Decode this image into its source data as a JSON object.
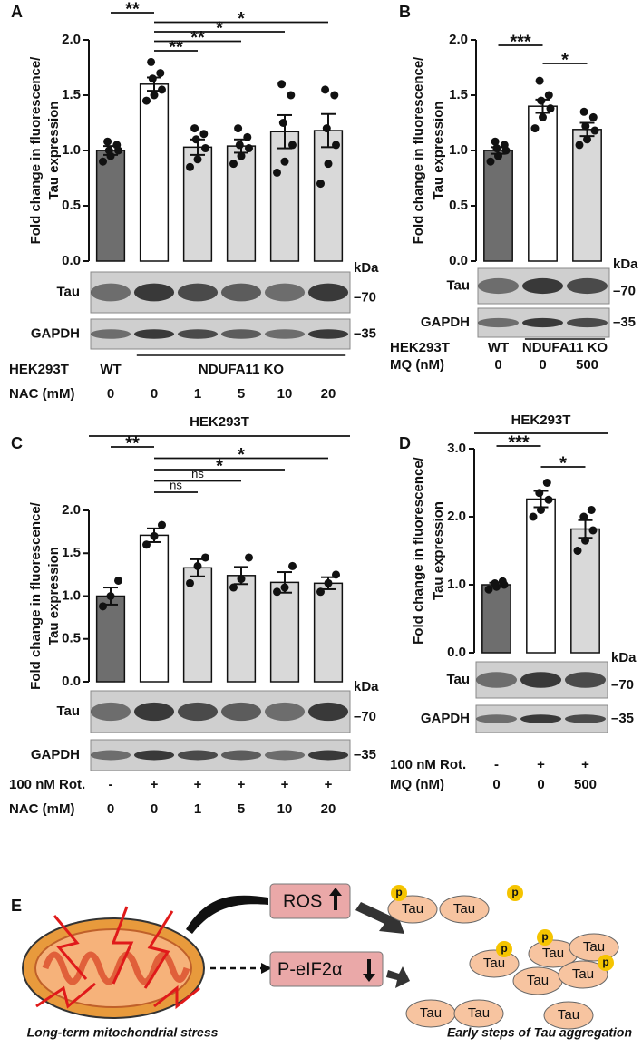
{
  "chart_data": [
    {
      "panel": "A",
      "type": "bar",
      "y_label": [
        "Fold change in fluorescence/",
        "Tau expression"
      ],
      "categories": [
        "0",
        "0",
        "1",
        "5",
        "10",
        "20"
      ],
      "category_label": "NAC (mM)",
      "values": [
        1.0,
        1.6,
        1.03,
        1.04,
        1.17,
        1.18
      ],
      "errors": [
        0.04,
        0.06,
        0.07,
        0.06,
        0.15,
        0.15
      ],
      "points": [
        [
          0.9,
          0.95,
          1.0,
          1.0,
          1.05,
          1.08
        ],
        [
          1.45,
          1.5,
          1.55,
          1.65,
          1.7,
          1.8
        ],
        [
          0.85,
          0.92,
          1.02,
          1.1,
          1.15,
          1.2
        ],
        [
          0.88,
          0.95,
          1.02,
          1.05,
          1.12,
          1.2
        ],
        [
          0.8,
          0.9,
          1.05,
          1.25,
          1.5,
          1.6
        ],
        [
          0.7,
          0.88,
          1.05,
          1.2,
          1.5,
          1.55
        ]
      ],
      "colors": [
        "#6e6e6e",
        "#ffffff",
        "#d9d9d9",
        "#d9d9d9",
        "#d9d9d9",
        "#d9d9d9"
      ],
      "ylim": [
        0,
        2
      ],
      "yticks": [
        {
          "value": 0,
          "label": "0.0"
        },
        0.5,
        {
          "value": 1,
          "label": "1.0"
        },
        1.5,
        {
          "value": 2,
          "label": "2.0"
        }
      ],
      "comparisons": [
        {
          "groups": [
            0,
            1
          ],
          "label": "**"
        },
        {
          "groups": [
            1,
            5
          ],
          "label": "*"
        },
        {
          "groups": [
            1,
            4
          ],
          "label": "*"
        },
        {
          "groups": [
            1,
            3
          ],
          "label": "**"
        },
        {
          "groups": [
            1,
            2
          ],
          "label": "**"
        }
      ],
      "condition_rows": [
        {
          "label": "HEK293T",
          "groups": [
            {
              "text": "WT",
              "lanes": [
                0,
                0
              ]
            },
            {
              "text": "NDUFA11 KO",
              "lanes": [
                1,
                5
              ]
            }
          ]
        }
      ],
      "blot": {
        "bands": [
          "Tau",
          "GAPDH"
        ],
        "unit": "kDa",
        "markers": [
          "–70",
          "–35"
        ]
      }
    },
    {
      "panel": "B",
      "type": "bar",
      "y_label": [
        "Fold change in fluorescence/",
        "Tau expression"
      ],
      "categories": [
        "0",
        "0",
        "500"
      ],
      "category_label": "MQ (nM)",
      "values": [
        1.0,
        1.4,
        1.19
      ],
      "errors": [
        0.03,
        0.06,
        0.06
      ],
      "points": [
        [
          0.9,
          0.95,
          1.0,
          1.02,
          1.05,
          1.08
        ],
        [
          1.2,
          1.3,
          1.38,
          1.45,
          1.5,
          1.63
        ],
        [
          1.05,
          1.1,
          1.18,
          1.22,
          1.3,
          1.35
        ]
      ],
      "colors": [
        "#6e6e6e",
        "#ffffff",
        "#d9d9d9"
      ],
      "ylim": [
        0,
        2
      ],
      "yticks": [
        {
          "value": 0,
          "label": "0.0"
        },
        0.5,
        {
          "value": 1,
          "label": "1.0"
        },
        1.5,
        {
          "value": 2,
          "label": "2.0"
        }
      ],
      "comparisons": [
        {
          "groups": [
            0,
            1
          ],
          "label": "***"
        },
        {
          "groups": [
            1,
            2
          ],
          "label": "*"
        }
      ],
      "condition_rows": [
        {
          "label": "HEK293T",
          "groups": [
            {
              "text": "WT",
              "lanes": [
                0,
                0
              ]
            },
            {
              "text": "NDUFA11 KO",
              "lanes": [
                1,
                2
              ]
            }
          ]
        }
      ],
      "blot": {
        "bands": [
          "Tau",
          "GAPDH"
        ],
        "unit": "kDa",
        "markers": [
          "–70",
          "–35"
        ]
      }
    },
    {
      "panel": "C",
      "type": "bar",
      "title": "HEK293T",
      "y_label": [
        "Fold change in fluorescence/",
        "Tau expression"
      ],
      "categories": [
        "0",
        "0",
        "1",
        "5",
        "10",
        "20"
      ],
      "category_label": "NAC (mM)",
      "values": [
        1.0,
        1.71,
        1.33,
        1.24,
        1.16,
        1.15
      ],
      "errors": [
        0.1,
        0.08,
        0.1,
        0.1,
        0.12,
        0.07
      ],
      "points": [
        [
          0.88,
          1.0,
          1.18
        ],
        [
          1.6,
          1.7,
          1.83
        ],
        [
          1.15,
          1.35,
          1.45
        ],
        [
          1.1,
          1.2,
          1.45
        ],
        [
          1.05,
          1.1,
          1.35
        ],
        [
          1.05,
          1.15,
          1.25
        ]
      ],
      "colors": [
        "#6e6e6e",
        "#ffffff",
        "#d9d9d9",
        "#d9d9d9",
        "#d9d9d9",
        "#d9d9d9"
      ],
      "ylim": [
        0,
        2
      ],
      "yticks": [
        {
          "value": 0,
          "label": "0.0"
        },
        0.5,
        {
          "value": 1,
          "label": "1.0"
        },
        1.5,
        {
          "value": 2,
          "label": "2.0"
        }
      ],
      "comparisons": [
        {
          "groups": [
            0,
            1
          ],
          "label": "**"
        },
        {
          "groups": [
            1,
            5
          ],
          "label": "*"
        },
        {
          "groups": [
            1,
            4
          ],
          "label": "*"
        },
        {
          "groups": [
            1,
            3
          ],
          "label": "ns"
        },
        {
          "groups": [
            1,
            2
          ],
          "label": "ns"
        }
      ],
      "condition_rows": [
        {
          "label": "100 nM Rot.",
          "groups": [
            {
              "text": "-",
              "lanes": [
                0,
                0
              ]
            },
            {
              "text": "+",
              "lanes": [
                1,
                1
              ]
            },
            {
              "text": "+",
              "lanes": [
                2,
                2
              ]
            },
            {
              "text": "+",
              "lanes": [
                3,
                3
              ]
            },
            {
              "text": "+",
              "lanes": [
                4,
                4
              ]
            },
            {
              "text": "+",
              "lanes": [
                5,
                5
              ]
            }
          ]
        }
      ],
      "blot": {
        "bands": [
          "Tau",
          "GAPDH"
        ],
        "unit": "kDa",
        "markers": [
          "–70",
          "–35"
        ]
      }
    },
    {
      "panel": "D",
      "type": "bar",
      "title": "HEK293T",
      "y_label": [
        "Fold change in fluorescence/",
        "Tau expression"
      ],
      "categories": [
        "0",
        "0",
        "500"
      ],
      "category_label": "MQ (nM)",
      "values": [
        1.0,
        2.26,
        1.82
      ],
      "errors": [
        0.03,
        0.12,
        0.13
      ],
      "points": [
        [
          0.93,
          0.97,
          1.0,
          1.02,
          1.05
        ],
        [
          2.0,
          2.1,
          2.25,
          2.35,
          2.5
        ],
        [
          1.5,
          1.65,
          1.8,
          2.0,
          2.1
        ]
      ],
      "colors": [
        "#6e6e6e",
        "#ffffff",
        "#d9d9d9"
      ],
      "ylim": [
        0,
        3
      ],
      "yticks": [
        {
          "value": 0,
          "label": "0.0"
        },
        {
          "value": 1,
          "label": "1.0"
        },
        {
          "value": 2,
          "label": "2.0"
        },
        {
          "value": 3,
          "label": "3.0"
        }
      ],
      "comparisons": [
        {
          "groups": [
            0,
            1
          ],
          "label": "***"
        },
        {
          "groups": [
            1,
            2
          ],
          "label": "*"
        }
      ],
      "condition_rows": [
        {
          "label": "100 nM Rot.",
          "groups": [
            {
              "text": "-",
              "lanes": [
                0,
                0
              ]
            },
            {
              "text": "+",
              "lanes": [
                1,
                1
              ]
            },
            {
              "text": "+",
              "lanes": [
                2,
                2
              ]
            }
          ]
        }
      ],
      "blot": {
        "bands": [
          "Tau",
          "GAPDH"
        ],
        "unit": "kDa",
        "markers": [
          "–70",
          "–35"
        ]
      }
    }
  ],
  "schematic": {
    "panel": "E",
    "ros": "ROS",
    "peif2a": "P-eIF2α",
    "left_caption": "Long-term mitochondrial stress",
    "right_caption": "Early steps of Tau aggregation",
    "tau": [
      "Tau",
      "Tau",
      "Tau",
      "Tau",
      "Tau",
      "Tau",
      "Tau",
      "Tau",
      "Tau",
      "Tau"
    ],
    "phospho": [
      "p",
      "p",
      "p",
      "p",
      "p"
    ]
  }
}
